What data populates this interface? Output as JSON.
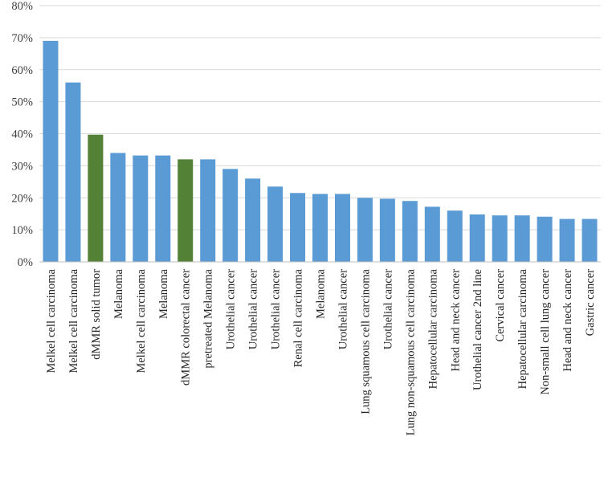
{
  "chart_data": {
    "type": "bar",
    "title": "",
    "xlabel": "",
    "ylabel": "",
    "ylim": [
      0,
      0.8
    ],
    "yticks": [
      0,
      0.1,
      0.2,
      0.3,
      0.4,
      0.5,
      0.6,
      0.7,
      0.8
    ],
    "ytick_labels": [
      "0%",
      "10%",
      "20%",
      "30%",
      "40%",
      "50%",
      "60%",
      "70%",
      "80%"
    ],
    "grid": "horizontal",
    "legend": "none",
    "colors": {
      "default": "#5b9bd5",
      "highlight": "#538135"
    },
    "categories": [
      "Melkel cell carcinoma",
      "Melkel cell carcinoma",
      "dMMR solid tumor",
      "Melanoma",
      "Melkel cell carcinoma",
      "Melanoma",
      "dMMR colorectal cancer",
      "pretreated Melanoma",
      "Urothelial cancer",
      "Urothelial cancer",
      "Urothelial cancer",
      "Renal cell carcinoma",
      "Melanoma",
      "Urothelial cancer",
      "Lung squamous cell carcinoma",
      "Urothelial cancer",
      "Lung non-squamous cell carcinoma",
      "Hepatocellular carcinoma",
      "Head and neck cancer",
      "Urothelial cancer 2nd line",
      "Cervical cancer",
      "Hepatocellular carcinoma",
      "Non-small cell lung cancer",
      "Head and neck cancer",
      "Gastric cancer"
    ],
    "values": [
      0.69,
      0.56,
      0.397,
      0.34,
      0.332,
      0.332,
      0.32,
      0.32,
      0.29,
      0.26,
      0.235,
      0.215,
      0.212,
      0.212,
      0.2,
      0.197,
      0.19,
      0.172,
      0.16,
      0.148,
      0.145,
      0.145,
      0.141,
      0.134,
      0.134
    ],
    "highlighted": [
      false,
      false,
      true,
      false,
      false,
      false,
      true,
      false,
      false,
      false,
      false,
      false,
      false,
      false,
      false,
      false,
      false,
      false,
      false,
      false,
      false,
      false,
      false,
      false,
      false
    ]
  }
}
